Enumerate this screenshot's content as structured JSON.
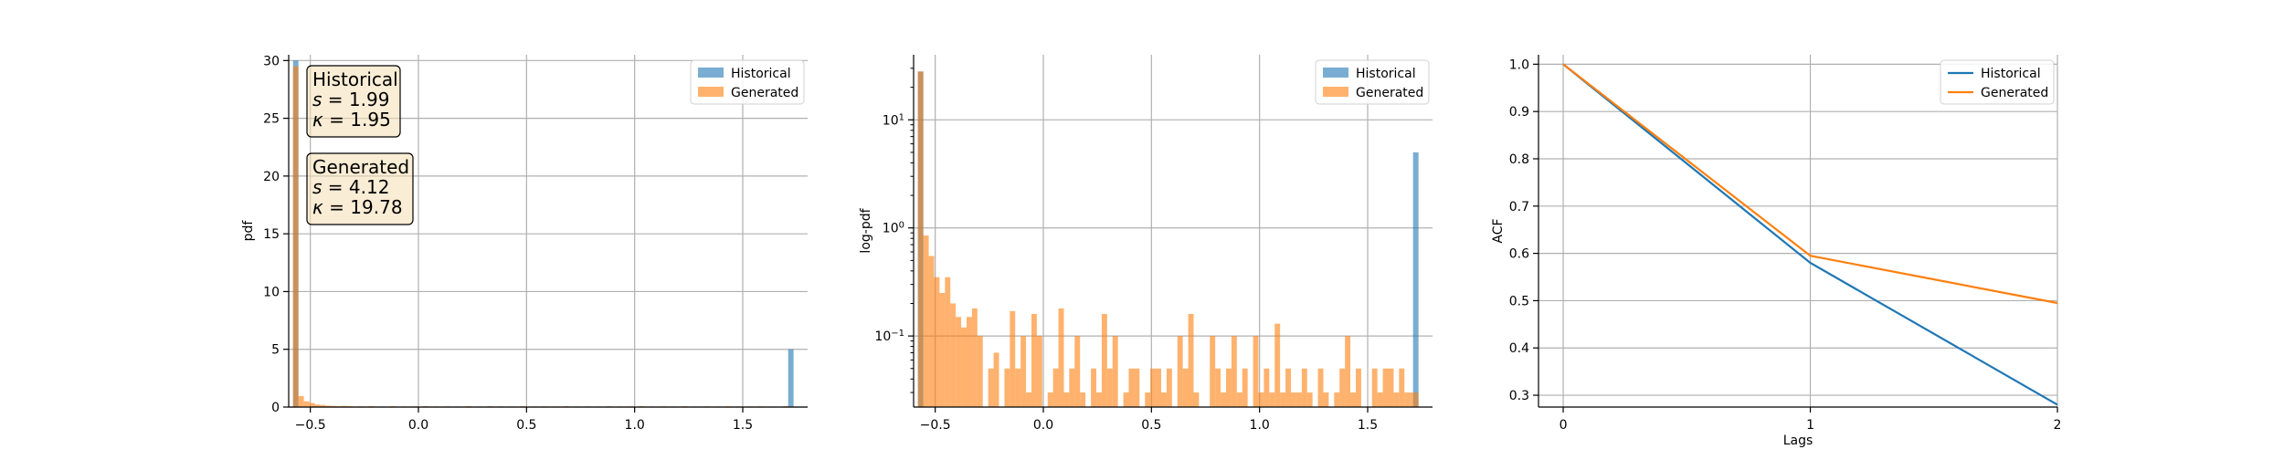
{
  "chart_data": [
    {
      "type": "bar",
      "subtype": "histogram",
      "xlabel": "",
      "ylabel": "pdf",
      "xlim": [
        -0.6,
        1.8
      ],
      "ylim": [
        0,
        30.5
      ],
      "xticks": [
        -0.5,
        0.0,
        0.5,
        1.0,
        1.5
      ],
      "xtick_labels": [
        "−0.5",
        "0.0",
        "0.5",
        "1.0",
        "1.5"
      ],
      "yticks": [
        0,
        5,
        10,
        15,
        20,
        25,
        30
      ],
      "ytick_labels": [
        "0",
        "5",
        "10",
        "15",
        "20",
        "25",
        "30"
      ],
      "grid": true,
      "legend_position": "top-right",
      "series": [
        {
          "name": "Historical",
          "color": "#1f77b4",
          "bins": [
            [
              -0.58,
              -0.555,
              30.0
            ],
            [
              1.71,
              1.735,
              5.0
            ]
          ]
        },
        {
          "name": "Generated",
          "color": "#ff7f0e",
          "bins": [
            [
              -0.58,
              -0.555,
              29.5
            ],
            [
              -0.555,
              -0.53,
              0.95
            ],
            [
              -0.53,
              -0.505,
              0.5
            ],
            [
              -0.505,
              -0.48,
              0.35
            ],
            [
              -0.48,
              -0.455,
              0.22
            ],
            [
              -0.455,
              -0.43,
              0.18
            ],
            [
              -0.43,
              -0.405,
              0.12
            ],
            [
              -0.405,
              -0.38,
              0.1
            ],
            [
              -0.38,
              -0.355,
              0.08
            ],
            [
              -0.355,
              -0.33,
              0.1
            ],
            [
              -0.33,
              -0.305,
              0.08
            ],
            [
              -0.28,
              -0.255,
              0.06
            ],
            [
              -0.23,
              -0.205,
              0.08
            ],
            [
              -0.18,
              -0.155,
              0.05
            ],
            [
              -0.13,
              -0.105,
              0.07
            ],
            [
              -0.08,
              -0.055,
              0.05
            ],
            [
              -0.03,
              -0.005,
              0.06
            ],
            [
              0.02,
              0.045,
              0.08
            ],
            [
              0.07,
              0.095,
              0.05
            ],
            [
              0.12,
              0.145,
              0.06
            ],
            [
              0.17,
              0.195,
              0.05
            ],
            [
              0.22,
              0.245,
              0.08
            ],
            [
              0.27,
              0.295,
              0.05
            ],
            [
              0.32,
              0.345,
              0.07
            ],
            [
              0.37,
              0.395,
              0.06
            ],
            [
              0.42,
              0.445,
              0.05
            ],
            [
              0.47,
              0.495,
              0.08
            ],
            [
              0.52,
              0.545,
              0.05
            ],
            [
              0.57,
              0.595,
              0.06
            ],
            [
              0.62,
              0.645,
              0.05
            ],
            [
              0.67,
              0.695,
              0.07
            ],
            [
              0.72,
              0.745,
              0.05
            ],
            [
              0.77,
              0.795,
              0.06
            ],
            [
              0.82,
              0.845,
              0.05
            ],
            [
              0.87,
              0.895,
              0.07
            ],
            [
              0.92,
              0.945,
              0.05
            ],
            [
              0.97,
              0.995,
              0.06
            ],
            [
              1.02,
              1.045,
              0.08
            ],
            [
              1.07,
              1.095,
              0.05
            ],
            [
              1.12,
              1.145,
              0.06
            ],
            [
              1.17,
              1.195,
              0.05
            ],
            [
              1.22,
              1.245,
              0.07
            ],
            [
              1.27,
              1.295,
              0.05
            ],
            [
              1.32,
              1.345,
              0.06
            ],
            [
              1.37,
              1.395,
              0.05
            ],
            [
              1.42,
              1.445,
              0.06
            ],
            [
              1.47,
              1.495,
              0.05
            ],
            [
              1.52,
              1.545,
              0.05
            ],
            [
              1.57,
              1.595,
              0.06
            ],
            [
              1.62,
              1.645,
              0.05
            ],
            [
              1.685,
              1.71,
              0.07
            ],
            [
              1.71,
              1.735,
              0.06
            ]
          ]
        }
      ],
      "stats_boxes": [
        {
          "title": "Historical",
          "s_value": "1.99",
          "k_value": "1.95"
        },
        {
          "title": "Generated",
          "s_value": "4.12",
          "k_value": "19.78"
        }
      ]
    },
    {
      "type": "bar",
      "subtype": "histogram",
      "xlabel": "",
      "ylabel": "log-pdf",
      "xscale": "linear",
      "yscale": "log",
      "xlim": [
        -0.6,
        1.8
      ],
      "ylim": [
        0.022,
        40
      ],
      "xticks": [
        -0.5,
        0.0,
        0.5,
        1.0,
        1.5
      ],
      "xtick_labels": [
        "−0.5",
        "0.0",
        "0.5",
        "1.0",
        "1.5"
      ],
      "yticks": [
        0.1,
        1,
        10
      ],
      "ytick_bases": [
        "10",
        "10",
        "10"
      ],
      "ytick_exponents": [
        "−1",
        "0",
        "1"
      ],
      "grid": true,
      "legend_position": "top-right",
      "series": [
        {
          "name": "Historical",
          "color": "#1f77b4",
          "bins": [
            [
              -0.58,
              -0.555,
              28.0
            ],
            [
              1.71,
              1.735,
              5.0
            ]
          ]
        },
        {
          "name": "Generated",
          "color": "#ff7f0e",
          "bins": [
            [
              -0.58,
              -0.555,
              28.0
            ],
            [
              -0.555,
              -0.53,
              0.85
            ],
            [
              -0.53,
              -0.505,
              0.55
            ],
            [
              -0.505,
              -0.48,
              0.35
            ],
            [
              -0.48,
              -0.455,
              0.25
            ],
            [
              -0.455,
              -0.43,
              0.35
            ],
            [
              -0.43,
              -0.405,
              0.2
            ],
            [
              -0.405,
              -0.38,
              0.15
            ],
            [
              -0.38,
              -0.355,
              0.12
            ],
            [
              -0.355,
              -0.33,
              0.15
            ],
            [
              -0.33,
              -0.305,
              0.18
            ],
            [
              -0.305,
              -0.28,
              0.1
            ],
            [
              -0.255,
              -0.23,
              0.05
            ],
            [
              -0.23,
              -0.205,
              0.07
            ],
            [
              -0.18,
              -0.155,
              0.05
            ],
            [
              -0.155,
              -0.13,
              0.17
            ],
            [
              -0.13,
              -0.105,
              0.05
            ],
            [
              -0.105,
              -0.08,
              0.1
            ],
            [
              -0.08,
              -0.055,
              0.03
            ],
            [
              -0.055,
              -0.03,
              0.16
            ],
            [
              -0.03,
              -0.005,
              0.1
            ],
            [
              0.02,
              0.045,
              0.03
            ],
            [
              0.045,
              0.07,
              0.05
            ],
            [
              0.07,
              0.095,
              0.18
            ],
            [
              0.095,
              0.12,
              0.03
            ],
            [
              0.12,
              0.145,
              0.05
            ],
            [
              0.145,
              0.17,
              0.1
            ],
            [
              0.17,
              0.195,
              0.03
            ],
            [
              0.22,
              0.245,
              0.05
            ],
            [
              0.245,
              0.27,
              0.03
            ],
            [
              0.27,
              0.295,
              0.16
            ],
            [
              0.295,
              0.32,
              0.05
            ],
            [
              0.32,
              0.345,
              0.1
            ],
            [
              0.37,
              0.395,
              0.03
            ],
            [
              0.395,
              0.42,
              0.05
            ],
            [
              0.42,
              0.445,
              0.05
            ],
            [
              0.47,
              0.495,
              0.03
            ],
            [
              0.495,
              0.52,
              0.05
            ],
            [
              0.52,
              0.545,
              0.05
            ],
            [
              0.545,
              0.57,
              0.03
            ],
            [
              0.57,
              0.595,
              0.05
            ],
            [
              0.62,
              0.645,
              0.1
            ],
            [
              0.645,
              0.67,
              0.05
            ],
            [
              0.67,
              0.695,
              0.16
            ],
            [
              0.695,
              0.72,
              0.03
            ],
            [
              0.77,
              0.795,
              0.1
            ],
            [
              0.795,
              0.82,
              0.05
            ],
            [
              0.82,
              0.845,
              0.03
            ],
            [
              0.845,
              0.87,
              0.05
            ],
            [
              0.87,
              0.895,
              0.1
            ],
            [
              0.895,
              0.92,
              0.03
            ],
            [
              0.92,
              0.945,
              0.05
            ],
            [
              0.97,
              0.995,
              0.1
            ],
            [
              0.995,
              1.02,
              0.03
            ],
            [
              1.02,
              1.045,
              0.05
            ],
            [
              1.045,
              1.07,
              0.03
            ],
            [
              1.07,
              1.095,
              0.13
            ],
            [
              1.095,
              1.12,
              0.03
            ],
            [
              1.12,
              1.145,
              0.05
            ],
            [
              1.145,
              1.17,
              0.03
            ],
            [
              1.17,
              1.195,
              0.03
            ],
            [
              1.195,
              1.22,
              0.05
            ],
            [
              1.22,
              1.245,
              0.03
            ],
            [
              1.27,
              1.295,
              0.05
            ],
            [
              1.295,
              1.32,
              0.03
            ],
            [
              1.345,
              1.37,
              0.03
            ],
            [
              1.37,
              1.395,
              0.05
            ],
            [
              1.395,
              1.42,
              0.1
            ],
            [
              1.42,
              1.445,
              0.03
            ],
            [
              1.445,
              1.47,
              0.05
            ],
            [
              1.52,
              1.545,
              0.05
            ],
            [
              1.545,
              1.57,
              0.03
            ],
            [
              1.57,
              1.595,
              0.05
            ],
            [
              1.595,
              1.62,
              0.05
            ],
            [
              1.62,
              1.645,
              0.03
            ],
            [
              1.645,
              1.67,
              0.05
            ],
            [
              1.67,
              1.695,
              0.03
            ],
            [
              1.695,
              1.71,
              0.03
            ],
            [
              1.71,
              1.735,
              0.03
            ]
          ]
        }
      ]
    },
    {
      "type": "line",
      "xlabel": "Lags",
      "ylabel": "ACF",
      "xlim": [
        -0.1,
        2.0
      ],
      "ylim": [
        0.275,
        1.02
      ],
      "xticks": [
        0,
        1,
        2
      ],
      "xtick_labels": [
        "0",
        "1",
        "2"
      ],
      "yticks": [
        0.3,
        0.4,
        0.5,
        0.6,
        0.7,
        0.8,
        0.9,
        1.0
      ],
      "ytick_labels": [
        "0.3",
        "0.4",
        "0.5",
        "0.6",
        "0.7",
        "0.8",
        "0.9",
        "1.0"
      ],
      "grid": true,
      "legend_position": "top-right",
      "x": [
        0,
        1,
        2
      ],
      "series": [
        {
          "name": "Historical",
          "color": "#1f77b4",
          "values": [
            1.0,
            0.58,
            0.28
          ]
        },
        {
          "name": "Generated",
          "color": "#ff7f0e",
          "values": [
            1.0,
            0.595,
            0.495
          ]
        }
      ]
    }
  ]
}
